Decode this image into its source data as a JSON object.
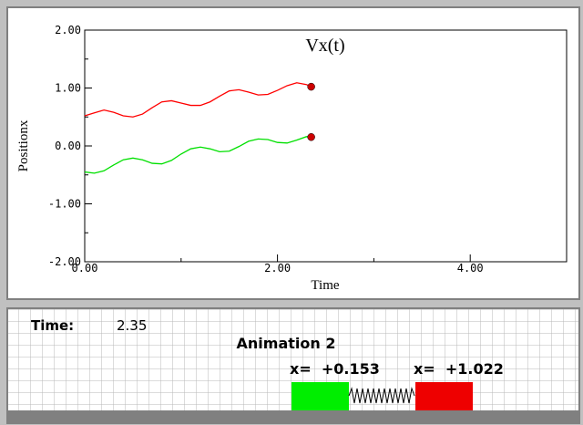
{
  "chart_data": {
    "type": "line",
    "title": "Vx(t)",
    "xlabel": "Time",
    "ylabel": "Positionx",
    "x": [
      0,
      0.1,
      0.2,
      0.3,
      0.4,
      0.5,
      0.6,
      0.7,
      0.8,
      0.9,
      1.0,
      1.1,
      1.2,
      1.3,
      1.4,
      1.5,
      1.6,
      1.7,
      1.8,
      1.9,
      2.0,
      2.1,
      2.2,
      2.3,
      2.35
    ],
    "series": [
      {
        "color": "#ff0000",
        "values": [
          0.52,
          0.57,
          0.62,
          0.58,
          0.52,
          0.5,
          0.55,
          0.66,
          0.76,
          0.78,
          0.74,
          0.7,
          0.7,
          0.76,
          0.86,
          0.95,
          0.97,
          0.93,
          0.88,
          0.89,
          0.96,
          1.04,
          1.09,
          1.06,
          1.022
        ]
      },
      {
        "color": "#00e000",
        "values": [
          -0.45,
          -0.47,
          -0.43,
          -0.33,
          -0.24,
          -0.21,
          -0.24,
          -0.3,
          -0.31,
          -0.25,
          -0.14,
          -0.05,
          -0.02,
          -0.05,
          -0.1,
          -0.09,
          -0.01,
          0.08,
          0.12,
          0.11,
          0.06,
          0.05,
          0.1,
          0.16,
          0.153
        ]
      }
    ],
    "marker_color": "#cc0000",
    "xlim": [
      0,
      5
    ],
    "ylim": [
      -2,
      2
    ],
    "xticks": [
      {
        "value": 0,
        "label": "0.00"
      },
      {
        "value": 2,
        "label": "2.00"
      },
      {
        "value": 4,
        "label": "4.00"
      }
    ],
    "yticks": [
      {
        "value": -2,
        "label": "-2.00"
      },
      {
        "value": -1,
        "label": "-1.00"
      },
      {
        "value": 0,
        "label": "0.00"
      },
      {
        "value": 1,
        "label": "1.00"
      },
      {
        "value": 2,
        "label": "2.00"
      }
    ],
    "xminorticks": [
      1,
      3,
      5
    ],
    "yminorticks": [
      -1.5,
      -0.5,
      0.5,
      1.5
    ]
  },
  "panel": {
    "time_label": "Time:",
    "time_value": "2.35",
    "title": "Animation 2",
    "readouts": [
      "x=  +0.153",
      "x=  +1.022"
    ]
  }
}
